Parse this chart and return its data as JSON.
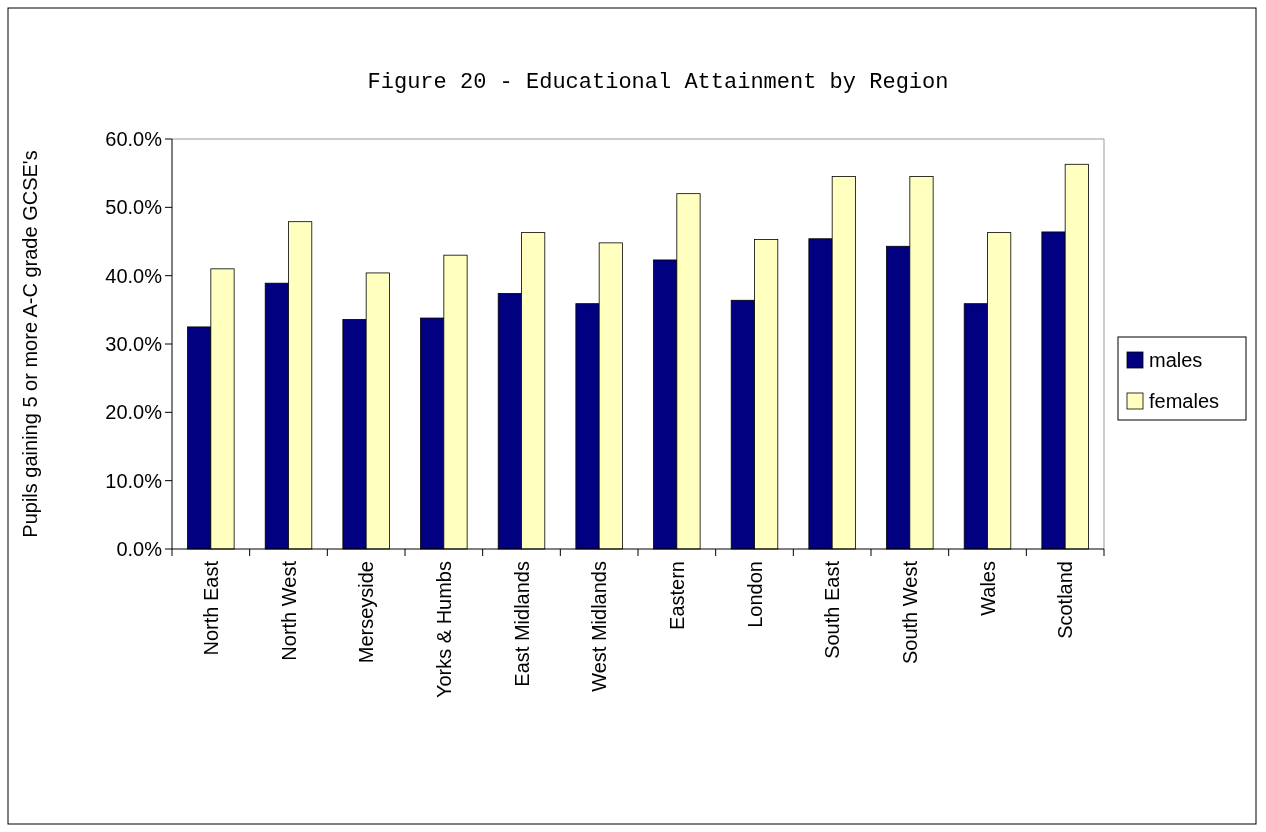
{
  "chart_data": {
    "type": "bar",
    "title": "Figure 20 - Educational Attainment by Region",
    "ylabel": "Pupils gaining 5 or more A-C grade GCSE's",
    "categories": [
      "North East",
      "North West",
      "Merseyside",
      "Yorks & Humbs",
      "East Midlands",
      "West Midlands",
      "Eastern",
      "London",
      "South East",
      "South West",
      "Wales",
      "Scotland"
    ],
    "series": [
      {
        "name": "males",
        "color": "#000080",
        "values": [
          32.5,
          38.9,
          33.6,
          33.8,
          37.4,
          35.9,
          42.3,
          36.4,
          45.4,
          44.3,
          35.9,
          46.4
        ]
      },
      {
        "name": "females",
        "color": "#ffffc0",
        "values": [
          41.0,
          47.9,
          40.4,
          43.0,
          46.3,
          44.8,
          52.0,
          45.3,
          54.5,
          54.5,
          46.3,
          56.3
        ]
      }
    ],
    "ylim": [
      0,
      60
    ],
    "yticks": [
      {
        "value": 0,
        "label": "0.0%"
      },
      {
        "value": 10,
        "label": "10.0%"
      },
      {
        "value": 20,
        "label": "20.0%"
      },
      {
        "value": 30,
        "label": "30.0%"
      },
      {
        "value": 40,
        "label": "40.0%"
      },
      {
        "value": 50,
        "label": "50.0%"
      },
      {
        "value": 60,
        "label": "60.0%"
      }
    ],
    "grid": false,
    "legend": "right"
  }
}
